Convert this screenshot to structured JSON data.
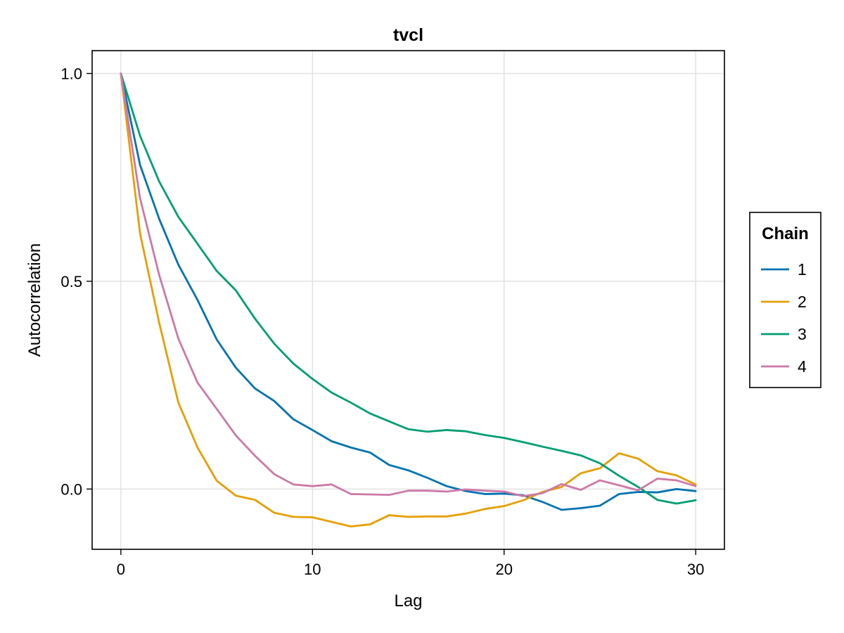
{
  "chart_data": {
    "type": "line",
    "title": "tvcl",
    "xlabel": "Lag",
    "ylabel": "Autocorrelation",
    "xlim": [
      -1.5,
      31.5
    ],
    "ylim": [
      -0.145,
      1.055
    ],
    "xticks": [
      0,
      10,
      20,
      30
    ],
    "xtick_labels": [
      "0",
      "10",
      "20",
      "30"
    ],
    "yticks": [
      0.0,
      0.5,
      1.0
    ],
    "ytick_labels": [
      "0.0",
      "0.5",
      "1.0"
    ],
    "grid": true,
    "legend": {
      "title": "Chain",
      "position": "right"
    },
    "x": [
      0,
      1,
      2,
      3,
      4,
      5,
      6,
      7,
      8,
      9,
      10,
      11,
      12,
      13,
      14,
      15,
      16,
      17,
      18,
      19,
      20,
      21,
      22,
      23,
      24,
      25,
      26,
      27,
      28,
      29,
      30
    ],
    "series": [
      {
        "name": "1",
        "color": "#0072B2",
        "values": [
          1.0,
          0.78,
          0.65,
          0.54,
          0.455,
          0.36,
          0.292,
          0.242,
          0.212,
          0.168,
          0.142,
          0.115,
          0.1,
          0.088,
          0.058,
          0.045,
          0.027,
          0.007,
          -0.005,
          -0.012,
          -0.011,
          -0.015,
          -0.031,
          -0.05,
          -0.046,
          -0.04,
          -0.012,
          -0.007,
          -0.008,
          0.0,
          -0.005
        ]
      },
      {
        "name": "2",
        "color": "#E69F00",
        "values": [
          1.0,
          0.615,
          0.4,
          0.208,
          0.1,
          0.02,
          -0.016,
          -0.026,
          -0.057,
          -0.067,
          -0.068,
          -0.079,
          -0.09,
          -0.085,
          -0.063,
          -0.067,
          -0.066,
          -0.066,
          -0.059,
          -0.048,
          -0.041,
          -0.027,
          -0.007,
          0.005,
          0.038,
          0.05,
          0.086,
          0.073,
          0.043,
          0.033,
          0.011
        ]
      },
      {
        "name": "3",
        "color": "#009E73",
        "values": [
          1.0,
          0.85,
          0.74,
          0.655,
          0.59,
          0.525,
          0.478,
          0.41,
          0.35,
          0.302,
          0.265,
          0.232,
          0.208,
          0.182,
          0.163,
          0.144,
          0.138,
          0.142,
          0.139,
          0.13,
          0.123,
          0.113,
          0.102,
          0.092,
          0.081,
          0.062,
          0.032,
          0.005,
          -0.026,
          -0.035,
          -0.027
        ]
      },
      {
        "name": "4",
        "color": "#CC79A7",
        "values": [
          1.0,
          0.7,
          0.515,
          0.362,
          0.256,
          0.193,
          0.129,
          0.08,
          0.036,
          0.011,
          0.007,
          0.011,
          -0.012,
          -0.013,
          -0.014,
          -0.004,
          -0.004,
          -0.006,
          -0.001,
          -0.004,
          -0.006,
          -0.017,
          -0.01,
          0.012,
          -0.002,
          0.021,
          0.009,
          -0.003,
          0.025,
          0.021,
          0.007
        ]
      }
    ]
  }
}
